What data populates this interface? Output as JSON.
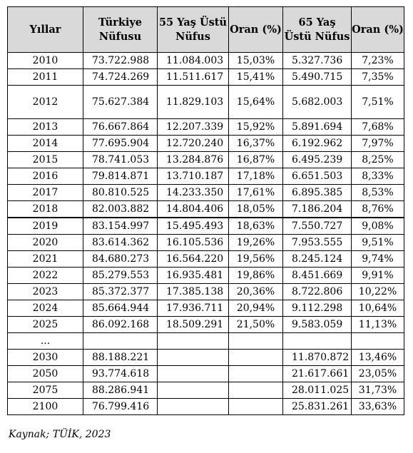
{
  "headers": [
    "Yıllar",
    "Türkiye Nüfusu",
    "55 Yaş Üstü Nüfus",
    "Oran (%)",
    "65 Yaş Üstü Nüfus",
    "Oran (%)"
  ],
  "rows": [
    [
      "2010",
      "73.722.988",
      "11.084.003",
      "15,03%",
      "5.327.736",
      "7,23%"
    ],
    [
      "2011",
      "74.724.269",
      "11.511.617",
      "15,41%",
      "5.490.715",
      "7,35%"
    ],
    [
      "2012",
      "75.627.384",
      "11.829.103",
      "15,64%",
      "5.682.003",
      "7,51%"
    ],
    [
      "2013",
      "76.667.864",
      "12.207.339",
      "15,92%",
      "5.891.694",
      "7,68%"
    ],
    [
      "2014",
      "77.695.904",
      "12.720.240",
      "16,37%",
      "6.192.962",
      "7,97%"
    ],
    [
      "2015",
      "78.741.053",
      "13.284.876",
      "16,87%",
      "6.495.239",
      "8,25%"
    ],
    [
      "2016",
      "79.814.871",
      "13.710.187",
      "17,18%",
      "6.651.503",
      "8,33%"
    ],
    [
      "2017",
      "80.810.525",
      "14.233.350",
      "17,61%",
      "6.895.385",
      "8,53%"
    ],
    [
      "2018",
      "82.003.882",
      "14.804.406",
      "18,05%",
      "7.186.204",
      "8,76%"
    ],
    [
      "2019",
      "83.154.997",
      "15.495.493",
      "18,63%",
      "7.550.727",
      "9,08%"
    ],
    [
      "2020",
      "83.614.362",
      "16.105.536",
      "19,26%",
      "7.953.555",
      "9,51%"
    ],
    [
      "2021",
      "84.680.273",
      "16.564.220",
      "19,56%",
      "8.245.124",
      "9,74%"
    ],
    [
      "2022",
      "85.279.553",
      "16.935.481",
      "19,86%",
      "8.451.669",
      "9,91%"
    ],
    [
      "2023",
      "85.372.377",
      "17.385.138",
      "20,36%",
      "8.722.806",
      "10,22%"
    ],
    [
      "2024",
      "85.664.944",
      "17.936.711",
      "20,94%",
      "9.112.298",
      "10,64%"
    ],
    [
      "2025",
      "86.092.168",
      "18.509.291",
      "21,50%",
      "9.583.059",
      "11,13%"
    ],
    [
      "...",
      "",
      "",
      "",
      "",
      ""
    ],
    [
      "2030",
      "88.188.221",
      "",
      "",
      "11.870.872",
      "13,46%"
    ],
    [
      "2050",
      "93.774.618",
      "",
      "",
      "21.617.661",
      "23,05%"
    ],
    [
      "2075",
      "88.286.941",
      "",
      "",
      "28.011.025",
      "31,73%"
    ],
    [
      "2100",
      "76.799.416",
      "",
      "",
      "25.831.261",
      "33,63%"
    ]
  ],
  "source": "Kaynak; TÜİK, 2023"
}
